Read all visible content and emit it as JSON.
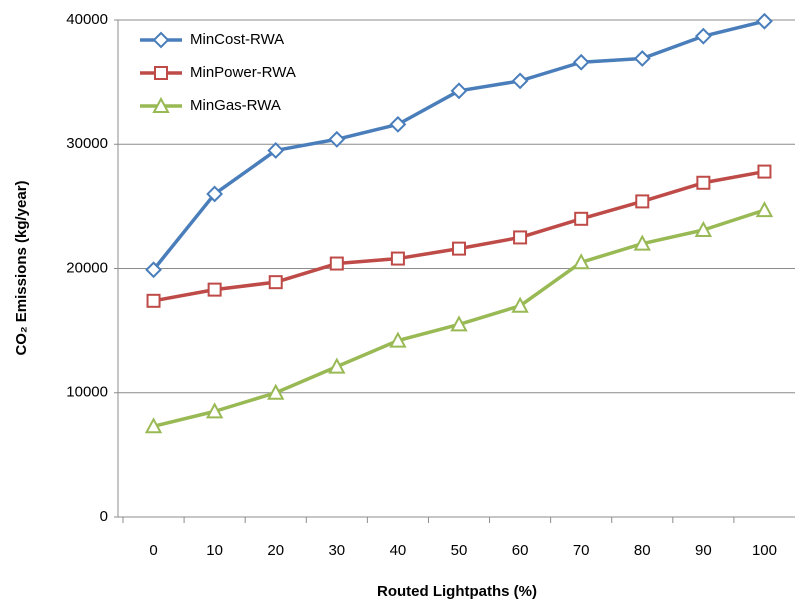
{
  "chart_data": {
    "type": "line",
    "x_label": "Routed Lightpaths (%)",
    "y_label": "CO₂ Emissions (kg/year)",
    "categories": [
      "0",
      "10",
      "20",
      "30",
      "40",
      "50",
      "60",
      "70",
      "80",
      "90",
      "100"
    ],
    "series": [
      {
        "name": "MinCost-RWA",
        "color": "#4a7ebb",
        "marker": "diamond",
        "values": [
          19900,
          26000,
          29500,
          30400,
          31600,
          34300,
          35100,
          36600,
          36900,
          38700,
          39900
        ]
      },
      {
        "name": "MinPower-RWA",
        "color": "#be4b48",
        "marker": "square",
        "values": [
          17400,
          18300,
          18900,
          20400,
          20800,
          21600,
          22500,
          24000,
          25400,
          26900,
          27800
        ]
      },
      {
        "name": "MinGas-RWA",
        "color": "#98b954",
        "marker": "triangle",
        "values": [
          7300,
          8500,
          10000,
          12100,
          14200,
          15500,
          17000,
          20500,
          22000,
          23100,
          24700
        ]
      }
    ],
    "ylim": [
      0,
      40000
    ],
    "yticks": [
      0,
      10000,
      20000,
      30000,
      40000
    ],
    "grid": true,
    "legend": "top-left"
  }
}
